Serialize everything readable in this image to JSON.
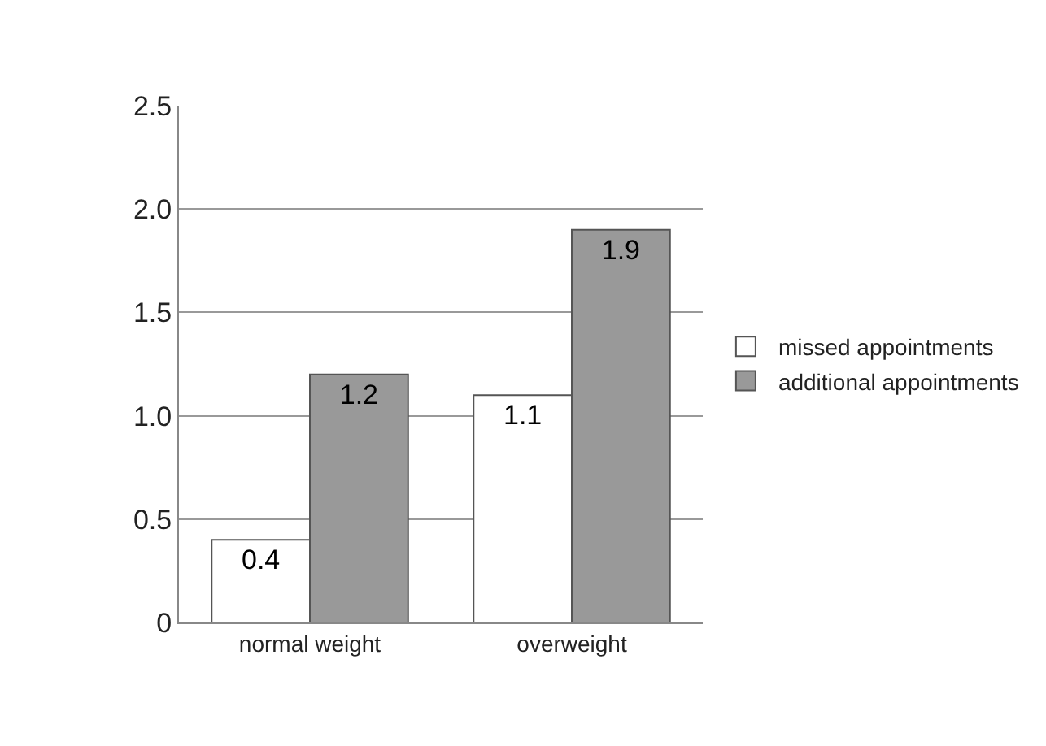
{
  "chart_data": {
    "type": "bar",
    "categories": [
      "normal weight",
      "overweight"
    ],
    "series": [
      {
        "name": "missed appointments",
        "color": "#ffffff",
        "values": [
          0.4,
          1.1
        ]
      },
      {
        "name": "additional appointments",
        "color": "#999999",
        "values": [
          1.2,
          1.9
        ]
      }
    ],
    "ylim": [
      0,
      2.5
    ],
    "yticks": [
      0,
      {
        "value": 0.5,
        "label": "0.5"
      },
      {
        "value": 1,
        "label": "1.0"
      },
      {
        "value": 1.5,
        "label": "1.5"
      },
      {
        "value": 2,
        "label": "2.0"
      },
      {
        "value": 2.5,
        "label": "2.5"
      }
    ],
    "grid": "y",
    "legend": "right",
    "data_labels": true
  }
}
